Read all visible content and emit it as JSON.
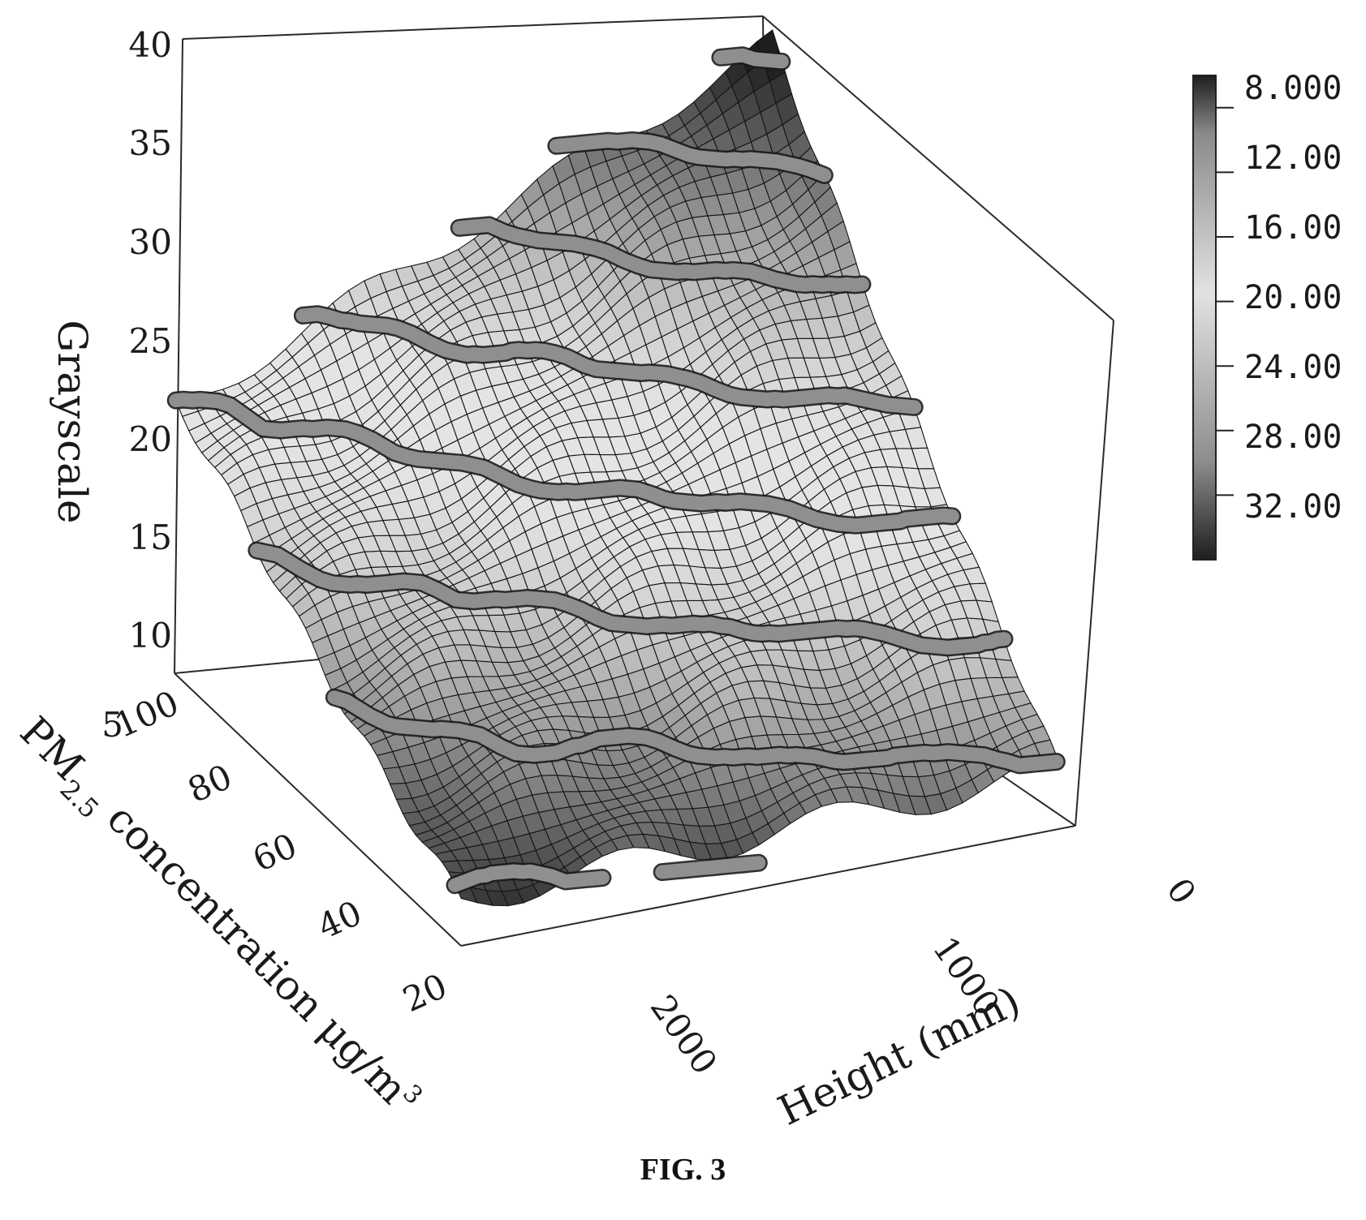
{
  "caption": "FIG. 3",
  "chart_data": {
    "type": "surface3d",
    "z_axis": {
      "label": "Grayscale",
      "ticks": [
        "40",
        "35",
        "30",
        "25",
        "20",
        "15",
        "10",
        "5"
      ],
      "range": [
        5,
        40
      ]
    },
    "y_axis": {
      "label_main": "PM",
      "label_sub": "2.5",
      "label_rest": " concentration μg/m",
      "label_sup": "3",
      "ticks": [
        "100",
        "80",
        "60",
        "40",
        "20"
      ],
      "range": [
        10,
        100
      ]
    },
    "x_axis": {
      "label": "Height (mm)",
      "ticks": [
        "2000",
        "1000",
        "0"
      ],
      "range": [
        0,
        2500
      ]
    },
    "colorbar": {
      "ticks": [
        "8.000",
        "12.00",
        "16.00",
        "20.00",
        "24.00",
        "28.00",
        "32.00"
      ],
      "range": [
        6,
        36
      ],
      "colors": [
        "#1e1e1e",
        "#d9d9d9",
        "#1e1e1e"
      ]
    },
    "surface": {
      "description_free": true,
      "corner_values": {
        "pm100_h2500": 19.5,
        "pm100_h0": 36.5,
        "pm10_h2500": 7.5,
        "pm10_h0": 11.5
      },
      "contour_levels": [
        8,
        12,
        16,
        20,
        24,
        28,
        32,
        36
      ]
    },
    "grid": true
  }
}
